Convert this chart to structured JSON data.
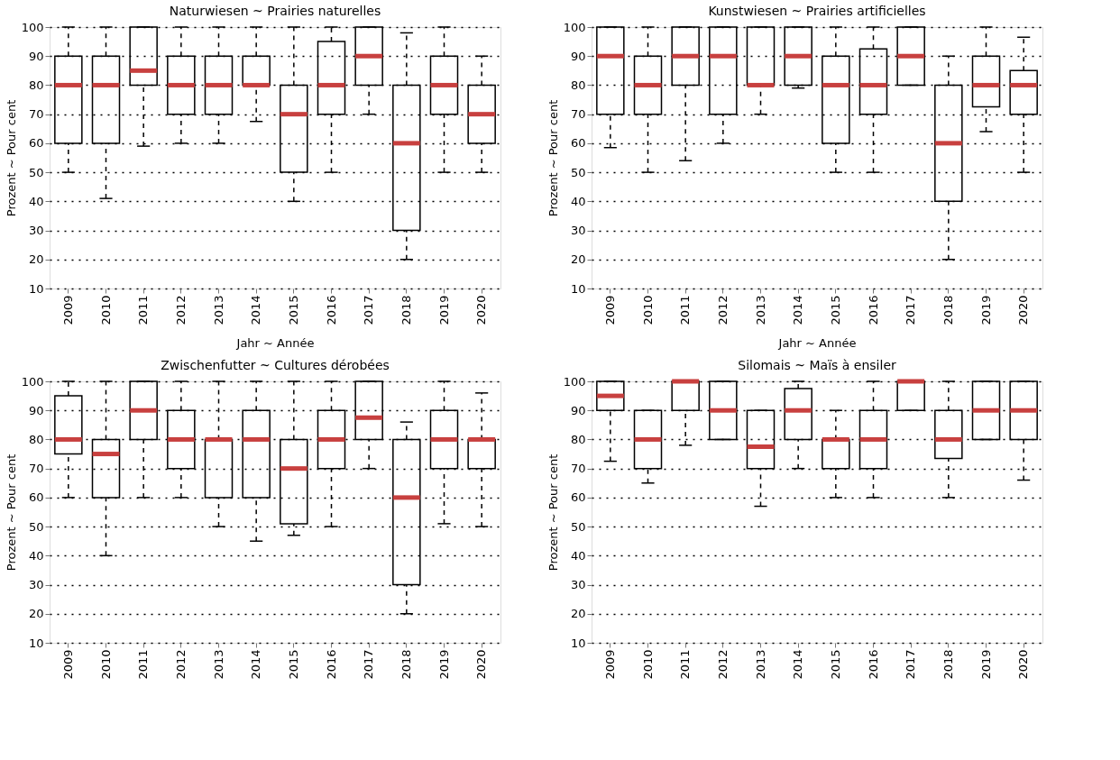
{
  "chart_data": [
    {
      "type": "box",
      "title": "Naturwiesen   ~   Prairies naturelles",
      "xlabel": "Jahr   ~   Année",
      "ylabel": "Prozent   ~   Pour cent",
      "categories": [
        "2009",
        "2010",
        "2011",
        "2012",
        "2013",
        "2014",
        "2015",
        "2016",
        "2017",
        "2018",
        "2019",
        "2020"
      ],
      "ylim": [
        10,
        100
      ],
      "yticks": [
        10,
        20,
        30,
        40,
        50,
        60,
        70,
        80,
        90,
        100
      ],
      "grid": "y",
      "series": [
        {
          "color": "#000000",
          "boxes": [
            {
              "low": 50,
              "q1": 60,
              "median": 80,
              "q3": 90,
              "high": 100
            },
            {
              "low": 41,
              "q1": 60,
              "median": 80,
              "q3": 90,
              "high": 100
            },
            {
              "low": 59,
              "q1": 80,
              "median": 85,
              "q3": 100,
              "high": 100
            },
            {
              "low": 60,
              "q1": 70,
              "median": 80,
              "q3": 90,
              "high": 100
            },
            {
              "low": 60,
              "q1": 70,
              "median": 80,
              "q3": 90,
              "high": 100
            },
            {
              "low": 67.5,
              "q1": 80,
              "median": 80,
              "q3": 90,
              "high": 100
            },
            {
              "low": 40,
              "q1": 50,
              "median": 70,
              "q3": 80,
              "high": 100
            },
            {
              "low": 50,
              "q1": 70,
              "median": 80,
              "q3": 95,
              "high": 100
            },
            {
              "low": 70,
              "q1": 80,
              "median": 90,
              "q3": 100,
              "high": 100
            },
            {
              "low": 20,
              "q1": 30,
              "median": 60,
              "q3": 80,
              "high": 98
            },
            {
              "low": 50,
              "q1": 70,
              "median": 80,
              "q3": 90,
              "high": 100
            },
            {
              "low": 50,
              "q1": 60,
              "median": 70,
              "q3": 80,
              "high": 90
            }
          ]
        }
      ]
    },
    {
      "type": "box",
      "title": "Kunstwiesen   ~   Prairies artificielles",
      "xlabel": "Jahr   ~   Année",
      "ylabel": "Prozent   ~   Pour cent",
      "categories": [
        "2009",
        "2010",
        "2011",
        "2012",
        "2013",
        "2014",
        "2015",
        "2016",
        "2017",
        "2018",
        "2019",
        "2020"
      ],
      "ylim": [
        10,
        100
      ],
      "yticks": [
        10,
        20,
        30,
        40,
        50,
        60,
        70,
        80,
        90,
        100
      ],
      "grid": "y",
      "series": [
        {
          "color": "#000000",
          "boxes": [
            {
              "low": 58.5,
              "q1": 70,
              "median": 90,
              "q3": 100,
              "high": 100
            },
            {
              "low": 50,
              "q1": 70,
              "median": 80,
              "q3": 90,
              "high": 100
            },
            {
              "low": 54,
              "q1": 80,
              "median": 90,
              "q3": 100,
              "high": 100
            },
            {
              "low": 60,
              "q1": 70,
              "median": 90,
              "q3": 100,
              "high": 100
            },
            {
              "low": 70,
              "q1": 80,
              "median": 80,
              "q3": 100,
              "high": 100
            },
            {
              "low": 79,
              "q1": 80,
              "median": 90,
              "q3": 100,
              "high": 100
            },
            {
              "low": 50,
              "q1": 60,
              "median": 80,
              "q3": 90,
              "high": 100
            },
            {
              "low": 50,
              "q1": 70,
              "median": 80,
              "q3": 92.5,
              "high": 100
            },
            {
              "low": 80,
              "q1": 80,
              "median": 90,
              "q3": 100,
              "high": 100
            },
            {
              "low": 20,
              "q1": 40,
              "median": 60,
              "q3": 80,
              "high": 90
            },
            {
              "low": 64,
              "q1": 72.5,
              "median": 80,
              "q3": 90,
              "high": 100
            },
            {
              "low": 50,
              "q1": 70,
              "median": 80,
              "q3": 85,
              "high": 96.5
            }
          ]
        }
      ]
    },
    {
      "type": "box",
      "title": "Zwischenfutter   ~   Cultures dérobées",
      "ylabel": "Prozent   ~   Pour cent",
      "categories": [
        "2009",
        "2010",
        "2011",
        "2012",
        "2013",
        "2014",
        "2015",
        "2016",
        "2017",
        "2018",
        "2019",
        "2020"
      ],
      "ylim": [
        10,
        100
      ],
      "yticks": [
        10,
        20,
        30,
        40,
        50,
        60,
        70,
        80,
        90,
        100
      ],
      "grid": "y",
      "series": [
        {
          "color": "#000000",
          "boxes": [
            {
              "low": 60,
              "q1": 75,
              "median": 80,
              "q3": 95,
              "high": 100
            },
            {
              "low": 40,
              "q1": 60,
              "median": 75,
              "q3": 80,
              "high": 100
            },
            {
              "low": 60,
              "q1": 80,
              "median": 90,
              "q3": 100,
              "high": 100
            },
            {
              "low": 60,
              "q1": 70,
              "median": 80,
              "q3": 90,
              "high": 100
            },
            {
              "low": 50,
              "q1": 60,
              "median": 80,
              "q3": 80,
              "high": 100
            },
            {
              "low": 45,
              "q1": 60,
              "median": 80,
              "q3": 90,
              "high": 100
            },
            {
              "low": 47,
              "q1": 51,
              "median": 70,
              "q3": 80,
              "high": 100
            },
            {
              "low": 50,
              "q1": 70,
              "median": 80,
              "q3": 90,
              "high": 100
            },
            {
              "low": 70,
              "q1": 80,
              "median": 87.5,
              "q3": 100,
              "high": 100
            },
            {
              "low": 20,
              "q1": 30,
              "median": 60,
              "q3": 80,
              "high": 86
            },
            {
              "low": 51,
              "q1": 70,
              "median": 80,
              "q3": 90,
              "high": 100
            },
            {
              "low": 50,
              "q1": 70,
              "median": 80,
              "q3": 80,
              "high": 96
            }
          ]
        }
      ]
    },
    {
      "type": "box",
      "title": "Silomais   ~   Maïs à ensiler",
      "ylabel": "Prozent   ~   Pour cent",
      "categories": [
        "2009",
        "2010",
        "2011",
        "2012",
        "2013",
        "2014",
        "2015",
        "2016",
        "2017",
        "2018",
        "2019",
        "2020"
      ],
      "ylim": [
        10,
        100
      ],
      "yticks": [
        10,
        20,
        30,
        40,
        50,
        60,
        70,
        80,
        90,
        100
      ],
      "grid": "y",
      "series": [
        {
          "color": "#000000",
          "boxes": [
            {
              "low": 72.5,
              "q1": 90,
              "median": 95,
              "q3": 100,
              "high": 100
            },
            {
              "low": 65,
              "q1": 70,
              "median": 80,
              "q3": 90,
              "high": 90
            },
            {
              "low": 78,
              "q1": 90,
              "median": 100,
              "q3": 100,
              "high": 100
            },
            {
              "low": 80,
              "q1": 80,
              "median": 90,
              "q3": 100,
              "high": 100
            },
            {
              "low": 57,
              "q1": 70,
              "median": 77.5,
              "q3": 90,
              "high": 90
            },
            {
              "low": 70,
              "q1": 80,
              "median": 90,
              "q3": 97.5,
              "high": 100
            },
            {
              "low": 60,
              "q1": 70,
              "median": 80,
              "q3": 80,
              "high": 90
            },
            {
              "low": 60,
              "q1": 70,
              "median": 80,
              "q3": 90,
              "high": 100
            },
            {
              "low": 90,
              "q1": 90,
              "median": 100,
              "q3": 100,
              "high": 100
            },
            {
              "low": 60,
              "q1": 73.5,
              "median": 80,
              "q3": 90,
              "high": 100
            },
            {
              "low": 80,
              "q1": 80,
              "median": 90,
              "q3": 100,
              "high": 100
            },
            {
              "low": 66,
              "q1": 80,
              "median": 90,
              "q3": 100,
              "high": 100
            }
          ]
        }
      ]
    }
  ]
}
